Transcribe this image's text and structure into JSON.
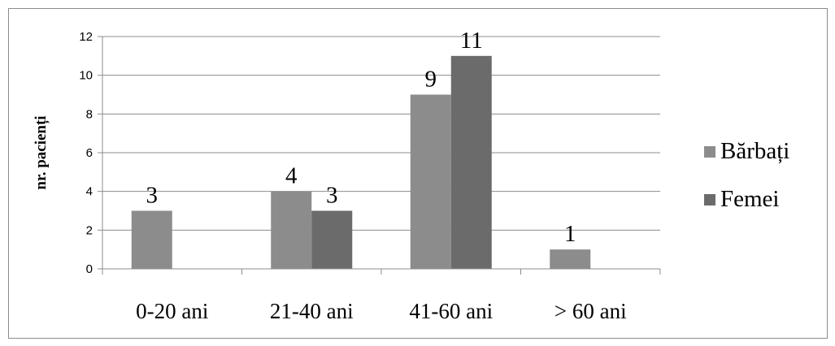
{
  "chart_data": {
    "type": "bar",
    "title": "",
    "xlabel": "",
    "ylabel": "nr. pacienți",
    "categories": [
      "0-20 ani",
      "21-40 ani",
      "41-60 ani",
      "> 60 ani"
    ],
    "series": [
      {
        "name": "Bărbați",
        "values": [
          3,
          4,
          9,
          1
        ],
        "labels": [
          "3",
          "4",
          "9",
          "1"
        ],
        "color": "#8c8c8c"
      },
      {
        "name": "Femei",
        "values": [
          0,
          3,
          11,
          0
        ],
        "labels": [
          "",
          "3",
          "11",
          ""
        ],
        "color": "#6b6b6b"
      }
    ],
    "ylim": [
      0,
      12
    ],
    "yticks": [
      "0",
      "2",
      "4",
      "6",
      "8",
      "10",
      "12"
    ],
    "grid": true,
    "legend_position": "right"
  }
}
